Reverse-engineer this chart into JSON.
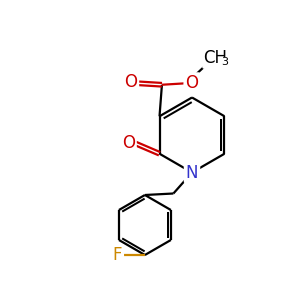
{
  "bg_color": "#ffffff",
  "atom_colors": {
    "C": "#000000",
    "N": "#3333cc",
    "O": "#cc0000",
    "F": "#cc8800"
  },
  "bond_color": "#000000",
  "bond_width": 1.6,
  "figsize": [
    3.0,
    3.0
  ],
  "dpi": 100
}
